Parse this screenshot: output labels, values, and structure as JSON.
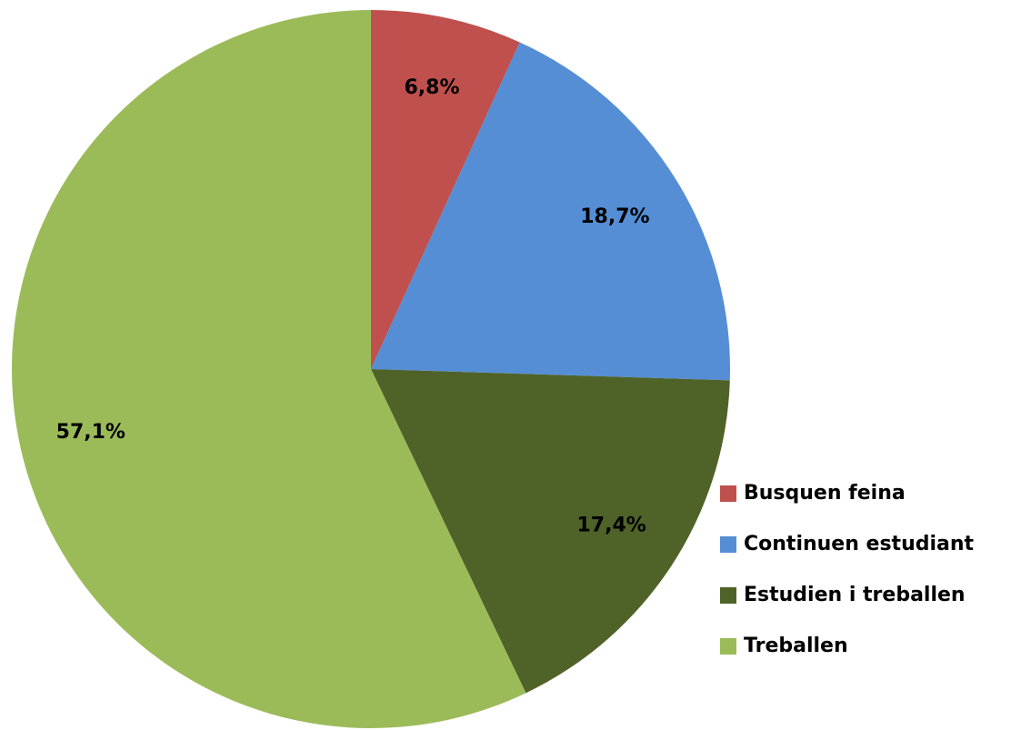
{
  "chart_data": {
    "type": "pie",
    "categories": [
      "Busquen feina",
      "Continuen estudiant",
      "Estudien i treballen",
      "Treballen"
    ],
    "values": [
      6.8,
      18.7,
      17.4,
      57.1
    ],
    "value_labels": [
      "6,8%",
      "18,7%",
      "17,4%",
      "57,1%"
    ],
    "colors": [
      "#c0504d",
      "#558ed5",
      "#4f6228",
      "#9bbb59"
    ],
    "legend": "right"
  }
}
